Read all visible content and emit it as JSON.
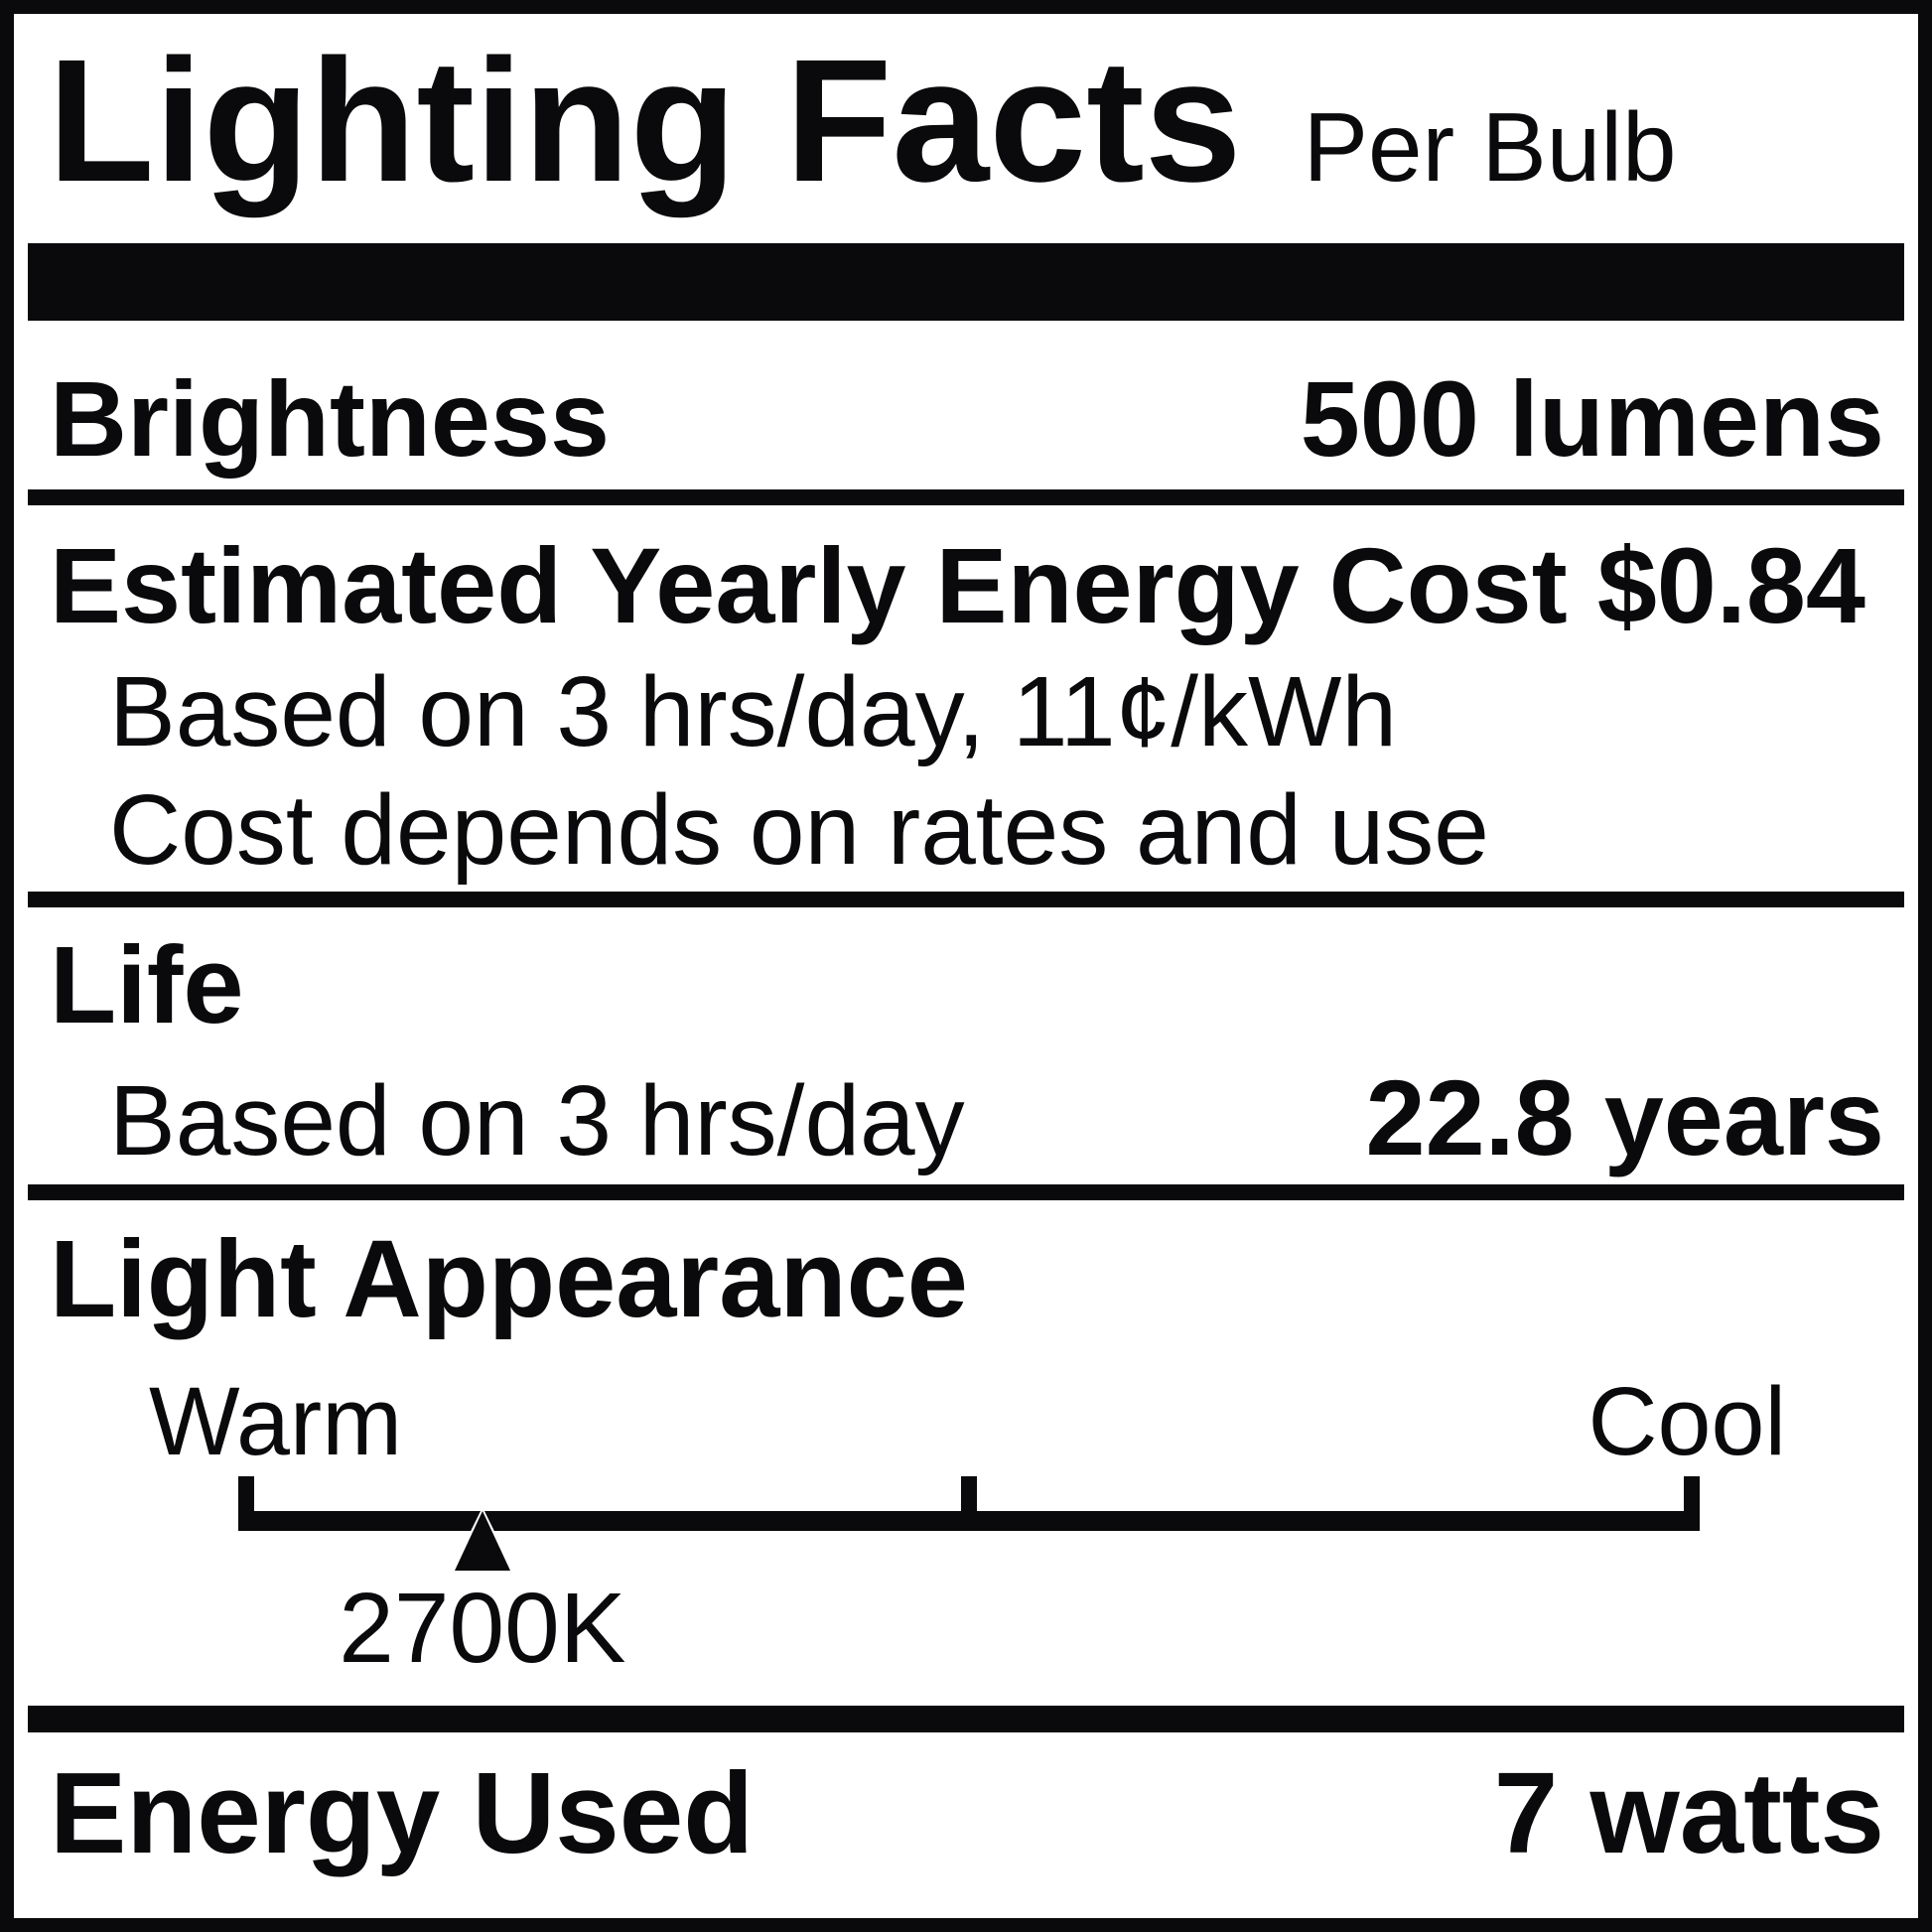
{
  "label": {
    "title": "Lighting Facts",
    "title_qualifier": "Per Bulb",
    "brightness": {
      "label": "Brightness",
      "value": "500 lumens"
    },
    "energy_cost": {
      "label": "Estimated Yearly Energy Cost",
      "value": "$0.84",
      "note_basis": "Based on 3 hrs/day, 11¢/kWh",
      "note_rates": "Cost depends on rates and use"
    },
    "life": {
      "label": "Life",
      "basis": "Based on 3 hrs/day",
      "value": "22.8 years"
    },
    "light_appearance": {
      "label": "Light Appearance",
      "warm_label": "Warm",
      "cool_label": "Cool",
      "marker_label": "2700K",
      "marker_position_pct": 16.7
    },
    "energy_used": {
      "label": "Energy Used",
      "value": "7 watts"
    },
    "colors": {
      "ink": "#0a0a0c",
      "background": "#ffffff"
    }
  }
}
